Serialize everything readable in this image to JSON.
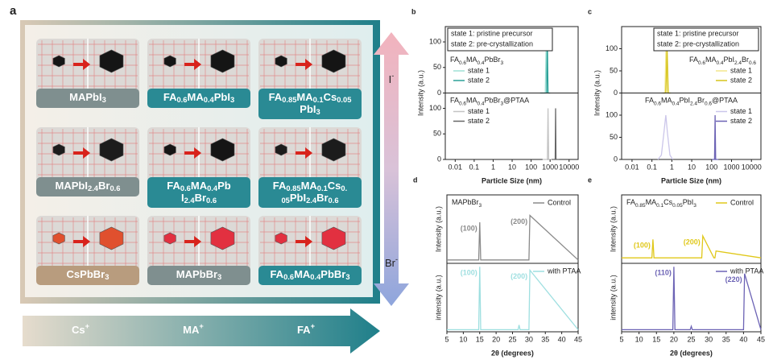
{
  "panel_a": {
    "label": "a",
    "tiles": [
      {
        "label": [
          [
            "MAPbI",
            {
              "sub": "3"
            }
          ]
        ],
        "label_color": "#7f8f8f",
        "crystal_color": "#151515"
      },
      {
        "label": [
          [
            "FA",
            {
              "sub": "0.6"
            },
            "MA",
            {
              "sub": "0.4"
            },
            "PbI",
            {
              "sub": "3"
            }
          ]
        ],
        "label_color": "#2a8a94",
        "crystal_color": "#151515"
      },
      {
        "label": [
          [
            "FA",
            {
              "sub": "0.85"
            },
            "MA",
            {
              "sub": "0.1"
            },
            "Cs",
            {
              "sub": "0.05"
            }
          ],
          [
            "PbI",
            {
              "sub": "3"
            }
          ]
        ],
        "label_color": "#2a8a94",
        "crystal_color": "#151515"
      },
      {
        "label": [
          [
            "MAPbI",
            {
              "sub": "2.4"
            },
            "Br",
            {
              "sub": "0.6"
            }
          ]
        ],
        "label_color": "#7f8f8f",
        "crystal_color": "#1c1c1c"
      },
      {
        "label": [
          [
            "FA",
            {
              "sub": "0.6"
            },
            "MA",
            {
              "sub": "0.4"
            },
            "Pb"
          ],
          [
            "I",
            {
              "sub": "2.4"
            },
            "Br",
            {
              "sub": "0.6"
            }
          ]
        ],
        "label_color": "#2a8a94",
        "crystal_color": "#151515"
      },
      {
        "label": [
          [
            "FA",
            {
              "sub": "0.85"
            },
            "MA",
            {
              "sub": "0.1"
            },
            "Cs",
            {
              "sub": "0."
            }
          ],
          [
            {
              "sub": "05"
            },
            "PbI",
            {
              "sub": "2.4"
            },
            "Br",
            {
              "sub": "0.6"
            }
          ]
        ],
        "label_color": "#2a8a94",
        "crystal_color": "#1c1c1c"
      },
      {
        "label": [
          [
            "CsPbBr",
            {
              "sub": "3"
            }
          ]
        ],
        "label_color": "#b89c7e",
        "crystal_color": "#e0502e"
      },
      {
        "label": [
          [
            "MAPbBr",
            {
              "sub": "3"
            }
          ]
        ],
        "label_color": "#7f8f8f",
        "crystal_color": "#e23040"
      },
      {
        "label": [
          [
            "FA",
            {
              "sub": "0.6"
            },
            "MA",
            {
              "sub": "0.4"
            },
            "PbBr",
            {
              "sub": "3"
            }
          ]
        ],
        "label_color": "#2a8a94",
        "crystal_color": "#e23040"
      }
    ],
    "halides": [
      [
        "I",
        {
          "sup": "-"
        }
      ],
      [
        "Br",
        {
          "sup": "-"
        }
      ]
    ],
    "cations": [
      [
        "Cs",
        {
          "sup": "+"
        }
      ],
      [
        "MA",
        {
          "sup": "+"
        }
      ],
      [
        "FA",
        {
          "sup": "+"
        }
      ]
    ]
  },
  "chart_data": [
    {
      "type": "line",
      "panel": "b",
      "xlabel": "Particle Size (nm)",
      "ylabel": "Intensity (a.u.)",
      "log_x": true,
      "xlim": [
        0.003,
        30000
      ],
      "xticks": [
        0.01,
        0.1,
        1,
        10,
        100,
        1000,
        10000
      ],
      "legend_box": [
        "state 1: pristine precursor",
        "state 2: pre-crystallization"
      ],
      "legend_box_loc": "left",
      "subplots": [
        {
          "label": [
            "FA",
            {
              "sub": "0.6"
            },
            "MA",
            {
              "sub": "0.4"
            },
            "PbBr",
            {
              "sub": "3"
            }
          ],
          "label_loc": "left",
          "legend": "upper left",
          "ylim": [
            0,
            130
          ],
          "yticks": [
            0,
            50,
            100
          ],
          "series": [
            {
              "name": "state 1",
              "color": "#9fe0d6",
              "x": [
                300,
                560,
                620,
                680,
                1000
              ],
              "values": [
                0,
                0,
                100,
                0,
                0
              ]
            },
            {
              "name": "state 2",
              "color": "#2aa198",
              "x": [
                300,
                660,
                720,
                780,
                1000
              ],
              "values": [
                0,
                0,
                100,
                0,
                0
              ]
            }
          ]
        },
        {
          "label": [
            "FA",
            {
              "sub": "0.6"
            },
            "MA",
            {
              "sub": "0.4"
            },
            "PbBr",
            {
              "sub": "3"
            },
            "@PTAA"
          ],
          "label_loc": "left",
          "legend": "upper left",
          "ylim": [
            0,
            130
          ],
          "yticks": [
            0,
            50,
            100
          ],
          "series": [
            {
              "name": "state 1",
              "color": "#c4c4c4",
              "x": [
                400,
                720,
                780,
                840,
                1200
              ],
              "values": [
                0,
                0,
                100,
                0,
                0
              ]
            },
            {
              "name": "state 2",
              "color": "#666666",
              "x": [
                1200,
                1850,
                1950,
                2050,
                3000
              ],
              "values": [
                0,
                0,
                100,
                0,
                0
              ]
            }
          ]
        }
      ]
    },
    {
      "type": "line",
      "panel": "c",
      "xlabel": "Particle Size (nm)",
      "ylabel": "Intensity (a.u.)",
      "log_x": true,
      "xlim": [
        0.003,
        30000
      ],
      "xticks": [
        0.01,
        0.1,
        1,
        10,
        100,
        1000,
        10000
      ],
      "legend_box": [
        "state 1: pristine precursor",
        "state 2: pre-crystallization"
      ],
      "legend_box_loc": "right",
      "subplots": [
        {
          "label": [
            "FA",
            {
              "sub": "0.6"
            },
            "MA",
            {
              "sub": "0.4"
            },
            "PbI",
            {
              "sub": "2.4"
            },
            "Br",
            {
              "sub": "0.6"
            }
          ],
          "label_loc": "right",
          "legend": "upper right",
          "ylim": [
            0,
            150
          ],
          "yticks": [
            0,
            50,
            100
          ],
          "series": [
            {
              "name": "state 1",
              "color": "#f2e78c",
              "x": [
                0.3,
                0.45,
                0.52,
                0.6,
                0.8
              ],
              "values": [
                0,
                0,
                120,
                0,
                0
              ]
            },
            {
              "name": "state 2",
              "color": "#d6c41a",
              "x": [
                0.35,
                0.5,
                0.58,
                0.66,
                0.9
              ],
              "values": [
                0,
                0,
                100,
                0,
                0
              ]
            }
          ]
        },
        {
          "label": [
            "FA",
            {
              "sub": "0.6"
            },
            "MA",
            {
              "sub": "0.4"
            },
            "PbI",
            {
              "sub": "2.4"
            },
            "Br",
            {
              "sub": "0.6"
            },
            "@PTAA"
          ],
          "label_loc": "center",
          "legend": "upper right",
          "ylim": [
            0,
            150
          ],
          "yticks": [
            0,
            50,
            100
          ],
          "series": [
            {
              "name": "state 1",
              "color": "#cbc6ea",
              "x": [
                0.2,
                0.3,
                0.4,
                0.5,
                0.6,
                0.8,
                1.1
              ],
              "values": [
                0,
                10,
                60,
                100,
                60,
                10,
                0
              ]
            },
            {
              "name": "state 2",
              "color": "#6c63b5",
              "x": [
                100,
                140,
                150,
                160,
                220
              ],
              "values": [
                0,
                0,
                100,
                0,
                0
              ]
            }
          ]
        }
      ]
    },
    {
      "type": "line",
      "panel": "d",
      "xlabel": "2θ (degrees)",
      "log_x": false,
      "xlim": [
        5,
        45
      ],
      "xticks": [
        5,
        10,
        15,
        20,
        25,
        30,
        35,
        40,
        45
      ],
      "subplots": [
        {
          "label": [
            "MAPbBr",
            {
              "sub": "3"
            }
          ],
          "label_loc": "left",
          "legend": "upper right",
          "ylabel": "Intensity (a.u.)",
          "ylim": [
            0,
            100
          ],
          "peak_labels": [
            "(100)",
            "(200)"
          ],
          "series": [
            {
              "name": "Control",
              "color": "#8a8a8a",
              "x": [
                5,
                14.7,
                15,
                15.3,
                29.7,
                30,
                30.3,
                45
              ],
              "values": [
                5,
                5,
                60,
                5,
                5,
                5,
                70,
                5
              ]
            }
          ]
        },
        {
          "legend": "upper right",
          "ylabel": "intensity (a.u.)",
          "ylim": [
            0,
            100
          ],
          "peak_labels": [
            "(100)",
            "(200)"
          ],
          "series": [
            {
              "name": "with PTAA",
              "color": "#9edfe0",
              "x": [
                5,
                14.7,
                15,
                15.3,
                26.7,
                27,
                27.3,
                29.7,
                30,
                30.3,
                45
              ],
              "values": [
                3,
                3,
                95,
                3,
                3,
                10,
                3,
                3,
                3,
                90,
                3
              ]
            }
          ]
        }
      ]
    },
    {
      "type": "line",
      "panel": "e",
      "xlabel": "2θ (degrees)",
      "log_x": false,
      "xlim": [
        5,
        45
      ],
      "xticks": [
        5,
        10,
        15,
        20,
        25,
        30,
        35,
        40,
        45
      ],
      "subplots": [
        {
          "label": [
            "FA",
            {
              "sub": "0.85"
            },
            "MA",
            {
              "sub": "0.1"
            },
            "Cs",
            {
              "sub": "0.05"
            },
            "PbI",
            {
              "sub": "3"
            }
          ],
          "label_loc": "left",
          "legend": "upper right",
          "ylabel": "Intensity (a.u.)",
          "ylim": [
            0,
            100
          ],
          "peak_labels": [
            "(100)",
            "(200)"
          ],
          "series": [
            {
              "name": "Control",
              "color": "#e0c81a",
              "x": [
                5,
                13.7,
                14,
                14.3,
                27.7,
                28,
                28.3,
                31.5,
                31.8,
                32.1,
                45
              ],
              "values": [
                8,
                8,
                35,
                8,
                8,
                8,
                40,
                8,
                8,
                18,
                8
              ]
            }
          ]
        },
        {
          "legend": "upper right",
          "ylabel": "intensity (a.u.)",
          "ylim": [
            0,
            100
          ],
          "peak_labels": [
            "(110)",
            "(220)"
          ],
          "series": [
            {
              "name": "with PTAA",
              "color": "#6c63b5",
              "x": [
                5,
                19.7,
                20,
                20.3,
                24.7,
                25,
                25.3,
                39.7,
                40,
                40.3,
                45
              ],
              "values": [
                3,
                3,
                95,
                3,
                3,
                8,
                3,
                3,
                3,
                85,
                3
              ]
            }
          ]
        }
      ]
    }
  ]
}
